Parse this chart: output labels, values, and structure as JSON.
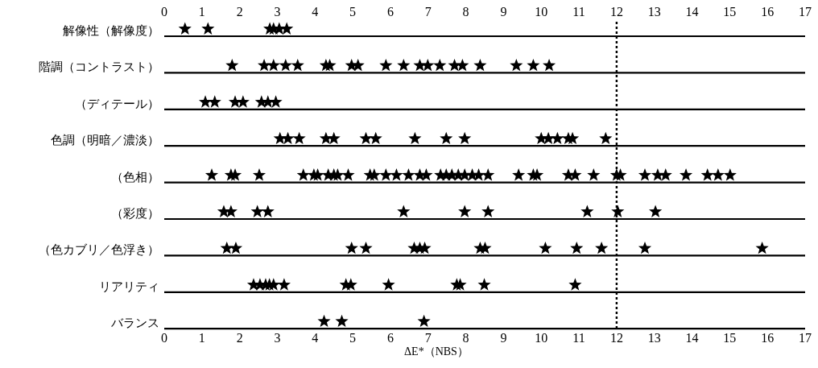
{
  "chart_data": {
    "type": "scatter",
    "orientation": "horizontal",
    "marker": "star",
    "grid": "y",
    "xlabel": "ΔE*（NBS）",
    "categories": [
      "解像性（解像度）",
      "階調（コントラスト）",
      "（ディテール）",
      "色調（明暗／濃淡）",
      "（色相）",
      "（彩度）",
      "（色カブリ／色浮き）",
      "リアリティ",
      "バランス"
    ],
    "xlim": [
      0,
      17
    ],
    "xticks": [
      0,
      1,
      2,
      3,
      4,
      5,
      6,
      7,
      8,
      9,
      10,
      11,
      12,
      13,
      14,
      15,
      16,
      17
    ],
    "x2lim": [
      0,
      17
    ],
    "x2ticks": [
      0,
      1,
      2,
      3,
      4,
      5,
      6,
      7,
      8,
      9,
      10,
      11,
      12,
      13,
      14,
      15,
      16,
      17
    ],
    "ref_lines": [
      {
        "axis": "x",
        "value": 12,
        "line_style": "dotted",
        "color": "#000000"
      }
    ],
    "series": [
      {
        "color": "#000000",
        "x": [
          "解像性（解像度）",
          "解像性（解像度）",
          "解像性（解像度）",
          "解像性（解像度）",
          "解像性（解像度）",
          "解像性（解像度）"
        ],
        "values": [
          0.55,
          1.16,
          2.8,
          2.9,
          3.05,
          3.25
        ]
      },
      {
        "color": "#000000",
        "x": [
          "階調（コントラスト）",
          "階調（コントラスト）",
          "階調（コントラスト）",
          "階調（コントラスト）",
          "階調（コントラスト）",
          "階調（コントラスト）",
          "階調（コントラスト）",
          "階調（コントラスト）",
          "階調（コントラスト）",
          "階調（コントラスト）",
          "階調（コントラスト）",
          "階調（コントラスト）",
          "階調（コントラスト）",
          "階調（コントラスト）",
          "階調（コントラスト）",
          "階調（コントラスト）",
          "階調（コントラスト）",
          "階調（コントラスト）",
          "階調（コントラスト）",
          "階調（コントラスト）"
        ],
        "values": [
          1.8,
          2.65,
          2.9,
          3.22,
          3.54,
          4.29,
          4.39,
          4.97,
          5.14,
          5.88,
          6.35,
          6.78,
          6.99,
          7.31,
          7.7,
          7.91,
          8.38,
          9.34,
          9.79,
          10.21
        ]
      },
      {
        "color": "#000000",
        "x": [
          "（ディテール）",
          "（ディテール）",
          "（ディテール）",
          "（ディテール）",
          "（ディテール）",
          "（ディテール）",
          "（ディテール）"
        ],
        "values": [
          1.09,
          1.34,
          1.88,
          2.09,
          2.58,
          2.75,
          2.96
        ]
      },
      {
        "color": "#000000",
        "x": [
          "色調（明暗／濃淡）",
          "色調（明暗／濃淡）",
          "色調（明暗／濃淡）",
          "色調（明暗／濃淡）",
          "色調（明暗／濃淡）",
          "色調（明暗／濃淡）",
          "色調（明暗／濃淡）",
          "色調（明暗／濃淡）",
          "色調（明暗／濃淡）",
          "色調（明暗／濃淡）",
          "色調（明暗／濃淡）",
          "色調（明暗／濃淡）",
          "色調（明暗／濃淡）",
          "色調（明暗／濃淡）",
          "色調（明暗／濃淡）",
          "色調（明暗／濃淡）"
        ],
        "values": [
          3.07,
          3.28,
          3.58,
          4.29,
          4.5,
          5.35,
          5.61,
          6.65,
          7.48,
          7.97,
          10.0,
          10.19,
          10.43,
          10.72,
          10.83,
          11.71
        ]
      },
      {
        "color": "#000000",
        "x": [
          "（色相）",
          "（色相）",
          "（色相）",
          "（色相）",
          "（色相）",
          "（色相）",
          "（色相）",
          "（色相）",
          "（色相）",
          "（色相）",
          "（色相）",
          "（色相）",
          "（色相）",
          "（色相）",
          "（色相）",
          "（色相）",
          "（色相）",
          "（色相）",
          "（色相）",
          "（色相）",
          "（色相）",
          "（色相）",
          "（色相）",
          "（色相）",
          "（色相）",
          "（色相）",
          "（色相）",
          "（色相）",
          "（色相）",
          "（色相）",
          "（色相）",
          "（色相）",
          "（色相）",
          "（色相）",
          "（色相）",
          "（色相）",
          "（色相）",
          "（色相）",
          "（色相）",
          "（色相）",
          "（色相）"
        ],
        "values": [
          1.26,
          1.77,
          1.88,
          2.52,
          3.69,
          3.97,
          4.07,
          4.35,
          4.5,
          4.6,
          4.88,
          5.46,
          5.57,
          5.88,
          6.16,
          6.48,
          6.78,
          6.95,
          7.33,
          7.48,
          7.63,
          7.8,
          7.97,
          8.17,
          8.34,
          8.59,
          9.4,
          9.79,
          9.89,
          10.72,
          10.9,
          11.39,
          12.0,
          12.1,
          12.75,
          13.09,
          13.3,
          13.84,
          14.41,
          14.69,
          15.01
        ]
      },
      {
        "color": "#000000",
        "x": [
          "（彩度）",
          "（彩度）",
          "（彩度）",
          "（彩度）",
          "（彩度）",
          "（彩度）",
          "（彩度）",
          "（彩度）",
          "（彩度）",
          "（彩度）"
        ],
        "values": [
          1.58,
          1.77,
          2.47,
          2.75,
          6.35,
          7.97,
          8.59,
          11.22,
          12.03,
          13.03
        ]
      },
      {
        "color": "#000000",
        "x": [
          "（色カブリ／色浮き）",
          "（色カブリ／色浮き）",
          "（色カブリ／色浮き）",
          "（色カブリ／色浮き）",
          "（色カブリ／色浮き）",
          "（色カブリ／色浮き）",
          "（色カブリ／色浮き）",
          "（色カブリ／色浮き）",
          "（色カブリ／色浮き）",
          "（色カブリ／色浮き）",
          "（色カブリ／色浮き）",
          "（色カブリ／色浮き）",
          "（色カブリ／色浮き）",
          "（色カブリ／色浮き）"
        ],
        "values": [
          1.66,
          1.9,
          4.97,
          5.35,
          6.63,
          6.78,
          6.91,
          8.38,
          8.51,
          10.11,
          10.94,
          11.6,
          12.75,
          15.86
        ]
      },
      {
        "color": "#000000",
        "x": [
          "リアリティ",
          "リアリティ",
          "リアリティ",
          "リアリティ",
          "リアリティ",
          "リアリティ",
          "リアリティ",
          "リアリティ",
          "リアリティ",
          "リアリティ",
          "リアリティ",
          "リアリティ",
          "リアリティ"
        ],
        "values": [
          2.37,
          2.54,
          2.69,
          2.79,
          2.9,
          3.18,
          4.82,
          4.95,
          5.95,
          7.76,
          7.85,
          8.49,
          10.9
        ]
      },
      {
        "color": "#000000",
        "x": [
          "バランス",
          "バランス",
          "バランス"
        ],
        "values": [
          4.24,
          4.71,
          6.89
        ]
      }
    ]
  }
}
